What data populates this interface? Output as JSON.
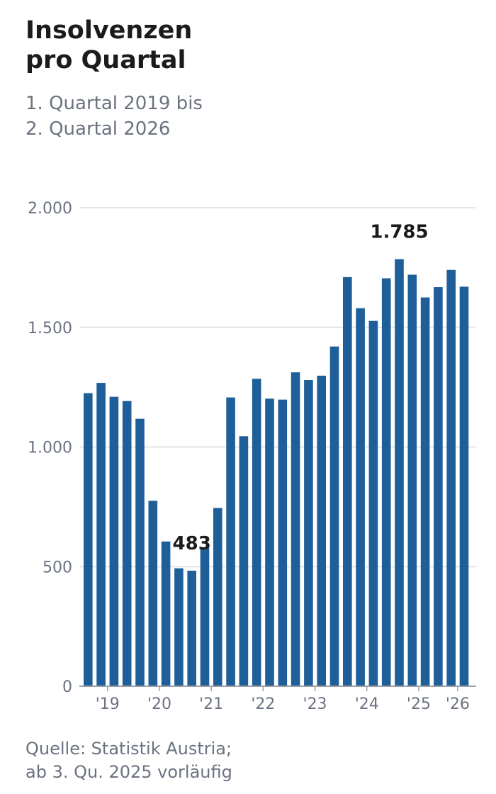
{
  "header": {
    "title_line1": "Insolvenzen",
    "title_line2": "pro Quartal",
    "subtitle_line1": "1. Quartal 2019 bis",
    "subtitle_line2": "2. Quartal 2026"
  },
  "footer": {
    "source_line1": "Quelle: Statistik Austria;",
    "source_line2": "ab 3. Qu. 2025 vorläufig"
  },
  "colors": {
    "bar": "#1f5f99",
    "grid": "#e3e5e8",
    "axis": "#9aa0a6"
  },
  "chart_data": {
    "type": "bar",
    "title": "Insolvenzen pro Quartal",
    "subtitle": "1. Quartal 2019 bis 2. Quartal 2026",
    "categories": [
      "Q1 2019",
      "Q2 2019",
      "Q3 2019",
      "Q4 2019",
      "Q1 2020",
      "Q2 2020",
      "Q3 2020",
      "Q4 2020",
      "Q1 2021",
      "Q2 2021",
      "Q3 2021",
      "Q4 2021",
      "Q1 2022",
      "Q2 2022",
      "Q3 2022",
      "Q4 2022",
      "Q1 2023",
      "Q2 2023",
      "Q3 2023",
      "Q4 2023",
      "Q1 2024",
      "Q2 2024",
      "Q3 2024",
      "Q4 2024",
      "Q1 2025",
      "Q2 2025",
      "Q3 2025",
      "Q4 2025",
      "Q1 2026",
      "Q2 2026"
    ],
    "values": [
      1225,
      1268,
      1210,
      1192,
      1118,
      775,
      605,
      493,
      483,
      578,
      745,
      1207,
      1045,
      1285,
      1202,
      1198,
      1312,
      1280,
      1298,
      1420,
      1710,
      1580,
      1527,
      1705,
      1785,
      1720,
      1625,
      1668,
      1740,
      1670
    ],
    "ylim": [
      0,
      2000
    ],
    "yticks": [
      0,
      500,
      1000,
      1500,
      2000
    ],
    "ytick_labels": [
      "0",
      "500",
      "1.000",
      "1.500",
      "2.000"
    ],
    "xtick_labels": [
      {
        "label": "'19",
        "index": 1.5
      },
      {
        "label": "'20",
        "index": 5.5
      },
      {
        "label": "'21",
        "index": 9.5
      },
      {
        "label": "'22",
        "index": 13.5
      },
      {
        "label": "'23",
        "index": 17.5
      },
      {
        "label": "'24",
        "index": 21.5
      },
      {
        "label": "'25",
        "index": 25.5
      },
      {
        "label": "'26",
        "index": 28.5
      }
    ],
    "annotations": [
      {
        "index": 8,
        "text": "483"
      },
      {
        "index": 24,
        "text": "1.785"
      }
    ],
    "grid": true,
    "legend": "none"
  }
}
